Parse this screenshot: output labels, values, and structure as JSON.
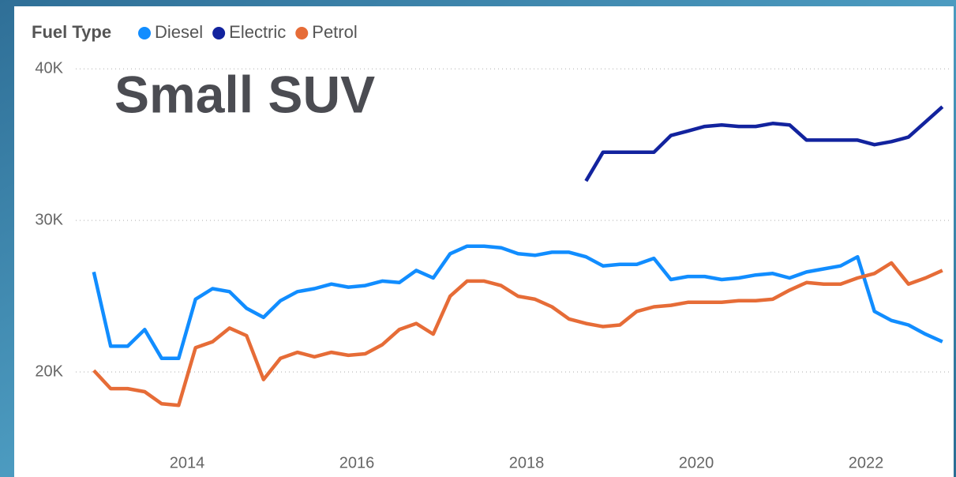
{
  "chart_data": {
    "type": "line",
    "title": "Small SUV",
    "legend_title": "Fuel Type",
    "legend": "top-left",
    "grid": true,
    "xlim": [
      2012.8,
      2023.0
    ],
    "xticks": [
      2014,
      2016,
      2018,
      2020,
      2022
    ],
    "ylim": [
      15000,
      41000
    ],
    "yticks": [
      {
        "value": 20000,
        "label": "20K"
      },
      {
        "value": 30000,
        "label": "30K"
      },
      {
        "value": 40000,
        "label": "40K"
      }
    ],
    "x": [
      2012.9,
      2013.1,
      2013.3,
      2013.5,
      2013.7,
      2013.9,
      2014.1,
      2014.3,
      2014.5,
      2014.7,
      2014.9,
      2015.1,
      2015.3,
      2015.5,
      2015.7,
      2015.9,
      2016.1,
      2016.3,
      2016.5,
      2016.7,
      2016.9,
      2017.1,
      2017.3,
      2017.5,
      2017.7,
      2017.9,
      2018.1,
      2018.3,
      2018.5,
      2018.7,
      2018.9,
      2019.1,
      2019.3,
      2019.5,
      2019.7,
      2019.9,
      2020.1,
      2020.3,
      2020.5,
      2020.7,
      2020.9,
      2021.1,
      2021.3,
      2021.5,
      2021.7,
      2021.9,
      2022.1,
      2022.3,
      2022.5,
      2022.7,
      2022.9
    ],
    "series": [
      {
        "name": "Diesel",
        "color": "#118dff",
        "values": [
          26600,
          21700,
          21700,
          22800,
          20900,
          20900,
          24800,
          25500,
          25300,
          24200,
          23600,
          24700,
          25300,
          25500,
          25800,
          25600,
          25700,
          26000,
          25900,
          26700,
          26200,
          27800,
          28300,
          28300,
          28200,
          27800,
          27700,
          27900,
          27900,
          27600,
          27000,
          27100,
          27100,
          27500,
          26100,
          26300,
          26300,
          26100,
          26200,
          26400,
          26500,
          26200,
          26600,
          26800,
          27000,
          27600,
          24000,
          23400,
          23100,
          22500,
          22000
        ]
      },
      {
        "name": "Electric",
        "color": "#12239e",
        "values": [
          null,
          null,
          null,
          null,
          null,
          null,
          null,
          null,
          null,
          null,
          null,
          null,
          null,
          null,
          null,
          null,
          null,
          null,
          null,
          null,
          null,
          null,
          null,
          null,
          null,
          null,
          null,
          null,
          null,
          32600,
          34500,
          34500,
          34500,
          34500,
          35600,
          35900,
          36200,
          36300,
          36200,
          36200,
          36400,
          36300,
          35300,
          35300,
          35300,
          35300,
          35000,
          35200,
          35500,
          36500,
          37500
        ]
      },
      {
        "name": "Petrol",
        "color": "#e66c37",
        "values": [
          20100,
          18900,
          18900,
          18700,
          17900,
          17800,
          21600,
          22000,
          22900,
          22400,
          19500,
          20900,
          21300,
          21000,
          21300,
          21100,
          21200,
          21800,
          22800,
          23200,
          22500,
          25000,
          26000,
          26000,
          25700,
          25000,
          24800,
          24300,
          23500,
          23200,
          23000,
          23100,
          24000,
          24300,
          24400,
          24600,
          24600,
          24600,
          24700,
          24700,
          24800,
          25400,
          25900,
          25800,
          25800,
          26200,
          26500,
          27200,
          25800,
          26200,
          26700
        ]
      }
    ]
  }
}
